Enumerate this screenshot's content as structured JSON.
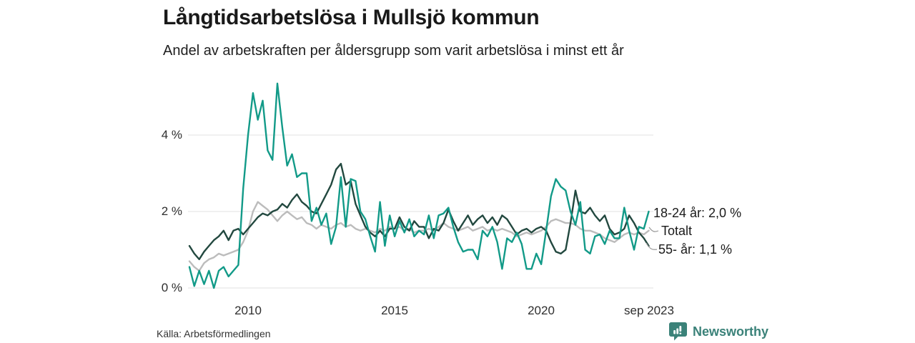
{
  "header": {
    "title": "Långtidsarbetslösa i Mullsjö kommun",
    "subtitle": "Andel av arbetskraften per åldersgrupp som varit arbetslösa i minst ett år"
  },
  "chart_data": {
    "type": "line",
    "title": "Långtidsarbetslösa i Mullsjö kommun",
    "subtitle": "Andel av arbetskraften per åldersgrupp som varit arbetslösa i minst ett år",
    "x_start": "2008-01",
    "x_end": "2023-09",
    "x_step_months": 2,
    "ylim": [
      0,
      5.5
    ],
    "yticks": [
      0,
      2,
      4
    ],
    "ytick_labels": [
      "0 %",
      "2 %",
      "4 %"
    ],
    "xticks": [
      2010,
      2015,
      2020,
      2023.667
    ],
    "xtick_labels": [
      "2010",
      "2015",
      "2020",
      "sep 2023"
    ],
    "grid": "horizontal",
    "legend_position": "right-of-line-ends",
    "series": [
      {
        "name": "18-24 år",
        "label": "18-24 år: 2,0 %",
        "latest_value_pct": 2.0,
        "color": "#129a88",
        "values": [
          0.55,
          0.05,
          0.45,
          0.1,
          0.45,
          0.0,
          0.45,
          0.55,
          0.3,
          0.45,
          0.6,
          2.6,
          4.0,
          5.1,
          4.4,
          4.9,
          3.6,
          3.35,
          5.35,
          4.2,
          3.2,
          3.5,
          2.9,
          3.0,
          3.0,
          1.75,
          2.1,
          1.65,
          1.95,
          1.15,
          1.6,
          2.9,
          1.6,
          2.85,
          2.8,
          2.0,
          1.8,
          1.35,
          0.95,
          2.25,
          1.1,
          1.9,
          1.35,
          1.75,
          1.45,
          1.8,
          1.35,
          1.5,
          1.4,
          1.9,
          1.3,
          1.9,
          1.95,
          2.1,
          1.6,
          1.2,
          0.95,
          1.0,
          1.0,
          0.75,
          1.5,
          1.35,
          1.6,
          1.2,
          0.5,
          1.3,
          1.2,
          1.45,
          1.15,
          0.5,
          0.5,
          0.9,
          0.62,
          1.5,
          2.4,
          2.85,
          2.65,
          2.55,
          2.0,
          1.65,
          2.25,
          1.0,
          0.9,
          1.35,
          1.4,
          1.15,
          1.5,
          1.3,
          1.3,
          2.1,
          1.5,
          1.0,
          1.6,
          1.55,
          2.0
        ]
      },
      {
        "name": "Totalt",
        "label": "Totalt",
        "color": "#bcbcbc",
        "values": [
          0.7,
          0.55,
          0.45,
          0.65,
          0.75,
          0.8,
          0.9,
          0.85,
          0.9,
          0.95,
          1.0,
          1.2,
          1.5,
          2.0,
          2.25,
          2.15,
          2.05,
          1.9,
          1.75,
          1.9,
          2.0,
          1.9,
          1.8,
          1.85,
          1.7,
          1.65,
          1.55,
          1.65,
          1.6,
          1.55,
          1.65,
          1.7,
          1.6,
          1.65,
          1.55,
          1.5,
          1.55,
          1.5,
          1.45,
          1.55,
          1.5,
          1.6,
          1.55,
          1.6,
          1.5,
          1.55,
          1.45,
          1.5,
          1.5,
          1.55,
          1.5,
          1.6,
          1.7,
          1.6,
          1.55,
          1.5,
          1.55,
          1.6,
          1.5,
          1.55,
          1.6,
          1.5,
          1.55,
          1.5,
          1.55,
          1.5,
          1.45,
          1.35,
          1.4,
          1.45,
          1.4,
          1.45,
          1.5,
          1.6,
          1.75,
          1.8,
          1.75,
          1.7,
          1.7,
          1.65,
          1.55,
          1.5,
          1.5,
          1.45,
          1.4,
          1.3,
          1.25,
          1.2,
          1.3,
          1.4,
          1.45,
          1.4,
          1.45,
          1.4,
          1.5
        ]
      },
      {
        "name": "55- år",
        "label": "55- år: 1,1 %",
        "latest_value_pct": 1.1,
        "color": "#22483f",
        "values": [
          1.1,
          0.9,
          0.75,
          0.95,
          1.1,
          1.25,
          1.35,
          1.5,
          1.25,
          1.5,
          1.55,
          1.4,
          1.55,
          1.7,
          1.85,
          1.95,
          1.9,
          2.0,
          2.05,
          2.2,
          2.1,
          2.3,
          2.45,
          2.25,
          2.15,
          2.0,
          1.95,
          2.2,
          2.45,
          2.7,
          3.1,
          3.25,
          2.7,
          2.8,
          2.2,
          1.9,
          1.6,
          1.45,
          1.35,
          1.5,
          1.35,
          1.55,
          1.55,
          1.85,
          1.6,
          1.5,
          1.75,
          1.6,
          1.6,
          1.3,
          1.55,
          1.5,
          1.7,
          2.05,
          1.75,
          1.5,
          1.7,
          1.9,
          1.65,
          1.8,
          1.9,
          1.7,
          1.85,
          1.65,
          1.9,
          1.8,
          1.6,
          1.4,
          1.5,
          1.55,
          1.45,
          1.55,
          1.6,
          1.5,
          1.2,
          0.95,
          0.9,
          1.0,
          1.7,
          2.55,
          2.0,
          1.95,
          2.1,
          1.9,
          1.75,
          1.9,
          1.55,
          1.4,
          1.45,
          1.55,
          1.9,
          1.7,
          1.45,
          1.3,
          1.1
        ]
      }
    ]
  },
  "footer": {
    "source": "Källa: Arbetsförmedlingen",
    "brand": "Newsworthy",
    "brand_color": "#3b8279",
    "logo_icon": "bar-chart-speech-bubble"
  },
  "colors": {
    "background": "#ffffff",
    "gridline": "#e2e2e2",
    "text": "#191919",
    "axis_text": "#2e2e2e",
    "leader_line": "#999999"
  }
}
